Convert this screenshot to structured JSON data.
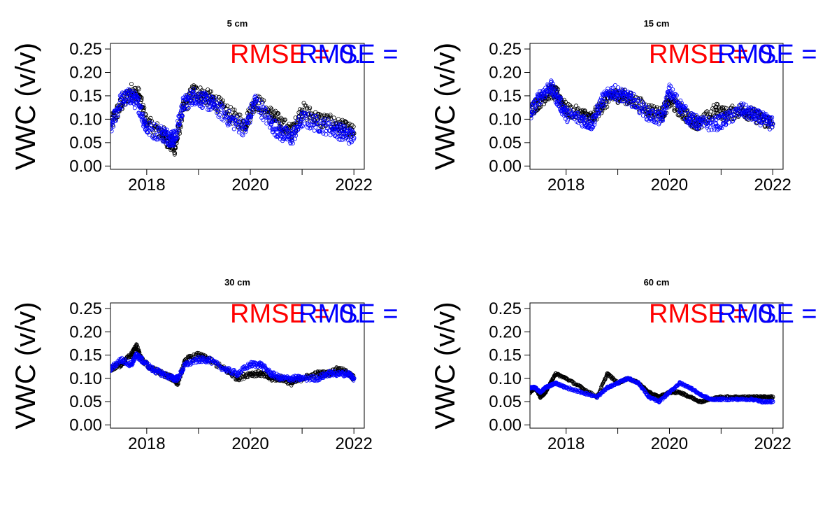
{
  "chart_data": [
    {
      "type": "scatter",
      "title": "5 cm",
      "ylabel": "VWC (v/v)",
      "xlabel": "",
      "xlim": [
        2017.3,
        2022.2
      ],
      "ylim": [
        -0.007,
        0.262
      ],
      "yticks": [
        "0.00",
        "0.05",
        "0.10",
        "0.15",
        "0.20",
        "0.25"
      ],
      "xticks": [
        "2018",
        "2020",
        "2022"
      ],
      "annotations": [
        {
          "text": "RMSE =",
          "color": "#ff0000"
        },
        {
          "text": "RMSE =",
          "color": "#0000ff"
        },
        {
          "text": "0.",
          "color": "#ff0000"
        },
        {
          "text": "0.",
          "color": "#0000ff"
        }
      ],
      "series": [
        {
          "color": "#000000",
          "x": [
            2017.3,
            2017.5,
            2017.7,
            2017.85,
            2018.0,
            2018.3,
            2018.45,
            2018.55,
            2018.7,
            2018.9,
            2019.1,
            2019.3,
            2019.6,
            2019.9,
            2020.1,
            2020.4,
            2020.6,
            2020.8,
            2021.0,
            2021.3,
            2021.6,
            2021.8,
            2022.0
          ],
          "values": [
            0.09,
            0.13,
            0.16,
            0.15,
            0.09,
            0.07,
            0.05,
            0.04,
            0.12,
            0.16,
            0.15,
            0.14,
            0.11,
            0.09,
            0.14,
            0.11,
            0.09,
            0.07,
            0.12,
            0.1,
            0.09,
            0.08,
            0.07
          ]
        },
        {
          "color": "#0000ff",
          "x": [
            2017.3,
            2017.5,
            2017.7,
            2017.85,
            2018.0,
            2018.3,
            2018.45,
            2018.55,
            2018.7,
            2018.9,
            2019.1,
            2019.3,
            2019.6,
            2019.9,
            2020.1,
            2020.4,
            2020.6,
            2020.8,
            2021.0,
            2021.3,
            2021.6,
            2021.8,
            2022.0
          ],
          "values": [
            0.08,
            0.14,
            0.15,
            0.13,
            0.08,
            0.07,
            0.06,
            0.06,
            0.13,
            0.15,
            0.14,
            0.13,
            0.1,
            0.08,
            0.14,
            0.09,
            0.07,
            0.06,
            0.1,
            0.09,
            0.08,
            0.07,
            0.06
          ]
        }
      ]
    },
    {
      "type": "scatter",
      "title": "15 cm",
      "ylabel": "VWC (v/v)",
      "xlabel": "",
      "xlim": [
        2017.3,
        2022.2
      ],
      "ylim": [
        -0.007,
        0.262
      ],
      "yticks": [
        "0.00",
        "0.05",
        "0.10",
        "0.15",
        "0.20",
        "0.25"
      ],
      "xticks": [
        "2018",
        "2020",
        "2022"
      ],
      "annotations": [
        {
          "text": "RMSE =",
          "color": "#ff0000"
        },
        {
          "text": "RMSE =",
          "color": "#0000ff"
        },
        {
          "text": "0.",
          "color": "#ff0000"
        },
        {
          "text": "0.",
          "color": "#0000ff"
        }
      ],
      "series": [
        {
          "color": "#000000",
          "x": [
            2017.3,
            2017.5,
            2017.7,
            2017.85,
            2018.0,
            2018.3,
            2018.5,
            2018.7,
            2018.9,
            2019.1,
            2019.3,
            2019.6,
            2019.85,
            2020.0,
            2020.2,
            2020.4,
            2020.6,
            2020.9,
            2021.1,
            2021.4,
            2021.6,
            2021.8,
            2022.0
          ],
          "values": [
            0.12,
            0.14,
            0.16,
            0.15,
            0.12,
            0.11,
            0.1,
            0.13,
            0.15,
            0.15,
            0.14,
            0.12,
            0.11,
            0.14,
            0.12,
            0.1,
            0.09,
            0.12,
            0.11,
            0.12,
            0.11,
            0.1,
            0.09
          ]
        },
        {
          "color": "#0000ff",
          "x": [
            2017.3,
            2017.5,
            2017.7,
            2017.85,
            2018.0,
            2018.3,
            2018.5,
            2018.7,
            2018.9,
            2019.1,
            2019.3,
            2019.6,
            2019.85,
            2020.0,
            2020.2,
            2020.4,
            2020.6,
            2020.9,
            2021.1,
            2021.4,
            2021.6,
            2021.8,
            2022.0
          ],
          "values": [
            0.11,
            0.15,
            0.17,
            0.14,
            0.11,
            0.1,
            0.09,
            0.14,
            0.16,
            0.15,
            0.14,
            0.11,
            0.1,
            0.16,
            0.13,
            0.1,
            0.09,
            0.09,
            0.1,
            0.12,
            0.11,
            0.1,
            0.09
          ]
        }
      ]
    },
    {
      "type": "scatter",
      "title": "30 cm",
      "ylabel": "VWC (v/v)",
      "xlabel": "",
      "xlim": [
        2017.3,
        2022.2
      ],
      "ylim": [
        -0.007,
        0.262
      ],
      "yticks": [
        "0.00",
        "0.05",
        "0.10",
        "0.15",
        "0.20",
        "0.25"
      ],
      "xticks": [
        "2018",
        "2020",
        "2022"
      ],
      "annotations": [
        {
          "text": "RMSE =",
          "color": "#ff0000"
        },
        {
          "text": "RMSE =",
          "color": "#0000ff"
        },
        {
          "text": "0.",
          "color": "#ff0000"
        },
        {
          "text": "0.",
          "color": "#0000ff"
        }
      ],
      "series": [
        {
          "color": "#000000",
          "x": [
            2017.3,
            2017.5,
            2017.7,
            2017.8,
            2017.9,
            2018.1,
            2018.3,
            2018.5,
            2018.6,
            2018.75,
            2019.0,
            2019.2,
            2019.5,
            2019.75,
            2020.0,
            2020.2,
            2020.4,
            2020.6,
            2020.8,
            2021.0,
            2021.3,
            2021.5,
            2021.7,
            2021.9,
            2022.0
          ],
          "values": [
            0.12,
            0.13,
            0.15,
            0.17,
            0.14,
            0.12,
            0.11,
            0.1,
            0.09,
            0.14,
            0.15,
            0.14,
            0.12,
            0.1,
            0.11,
            0.11,
            0.1,
            0.1,
            0.09,
            0.1,
            0.11,
            0.11,
            0.12,
            0.11,
            0.1
          ]
        },
        {
          "color": "#0000ff",
          "x": [
            2017.3,
            2017.5,
            2017.7,
            2017.8,
            2017.9,
            2018.1,
            2018.3,
            2018.5,
            2018.6,
            2018.75,
            2019.0,
            2019.2,
            2019.5,
            2019.75,
            2020.0,
            2020.2,
            2020.4,
            2020.6,
            2020.8,
            2021.0,
            2021.3,
            2021.5,
            2021.7,
            2021.9,
            2022.0
          ],
          "values": [
            0.12,
            0.14,
            0.13,
            0.15,
            0.14,
            0.12,
            0.11,
            0.1,
            0.1,
            0.13,
            0.14,
            0.14,
            0.12,
            0.11,
            0.13,
            0.13,
            0.11,
            0.1,
            0.1,
            0.1,
            0.1,
            0.11,
            0.11,
            0.11,
            0.1
          ]
        }
      ]
    },
    {
      "type": "scatter",
      "title": "60 cm",
      "ylabel": "VWC (v/v)",
      "xlabel": "",
      "xlim": [
        2017.3,
        2022.2
      ],
      "ylim": [
        -0.007,
        0.262
      ],
      "yticks": [
        "0.00",
        "0.05",
        "0.10",
        "0.15",
        "0.20",
        "0.25"
      ],
      "xticks": [
        "2018",
        "2020",
        "2022"
      ],
      "annotations": [
        {
          "text": "RMSE =",
          "color": "#ff0000"
        },
        {
          "text": "RMSE =",
          "color": "#0000ff"
        },
        {
          "text": "0.",
          "color": "#ff0000"
        },
        {
          "text": "0.",
          "color": "#0000ff"
        }
      ],
      "series": [
        {
          "color": "#000000",
          "x": [
            2017.3,
            2017.4,
            2017.5,
            2017.6,
            2017.7,
            2017.8,
            2018.0,
            2018.3,
            2018.6,
            2018.8,
            2019.0,
            2019.2,
            2019.4,
            2019.6,
            2019.8,
            2020.0,
            2020.2,
            2020.4,
            2020.6,
            2020.8,
            2021.0,
            2021.3,
            2021.6,
            2021.8,
            2022.0
          ],
          "values": [
            0.07,
            0.08,
            0.06,
            0.07,
            0.09,
            0.11,
            0.1,
            0.08,
            0.06,
            0.11,
            0.09,
            0.1,
            0.09,
            0.07,
            0.06,
            0.07,
            0.07,
            0.06,
            0.05,
            0.055,
            0.06,
            0.06,
            0.06,
            0.06,
            0.06
          ]
        },
        {
          "color": "#0000ff",
          "x": [
            2017.3,
            2017.4,
            2017.5,
            2017.6,
            2017.7,
            2017.8,
            2018.0,
            2018.3,
            2018.6,
            2018.8,
            2019.0,
            2019.2,
            2019.4,
            2019.6,
            2019.8,
            2020.0,
            2020.2,
            2020.4,
            2020.6,
            2020.8,
            2021.0,
            2021.3,
            2021.6,
            2021.8,
            2022.0
          ],
          "values": [
            0.08,
            0.08,
            0.07,
            0.08,
            0.085,
            0.09,
            0.08,
            0.07,
            0.06,
            0.08,
            0.09,
            0.1,
            0.09,
            0.06,
            0.05,
            0.07,
            0.09,
            0.08,
            0.065,
            0.055,
            0.055,
            0.055,
            0.055,
            0.05,
            0.05
          ]
        }
      ]
    }
  ]
}
